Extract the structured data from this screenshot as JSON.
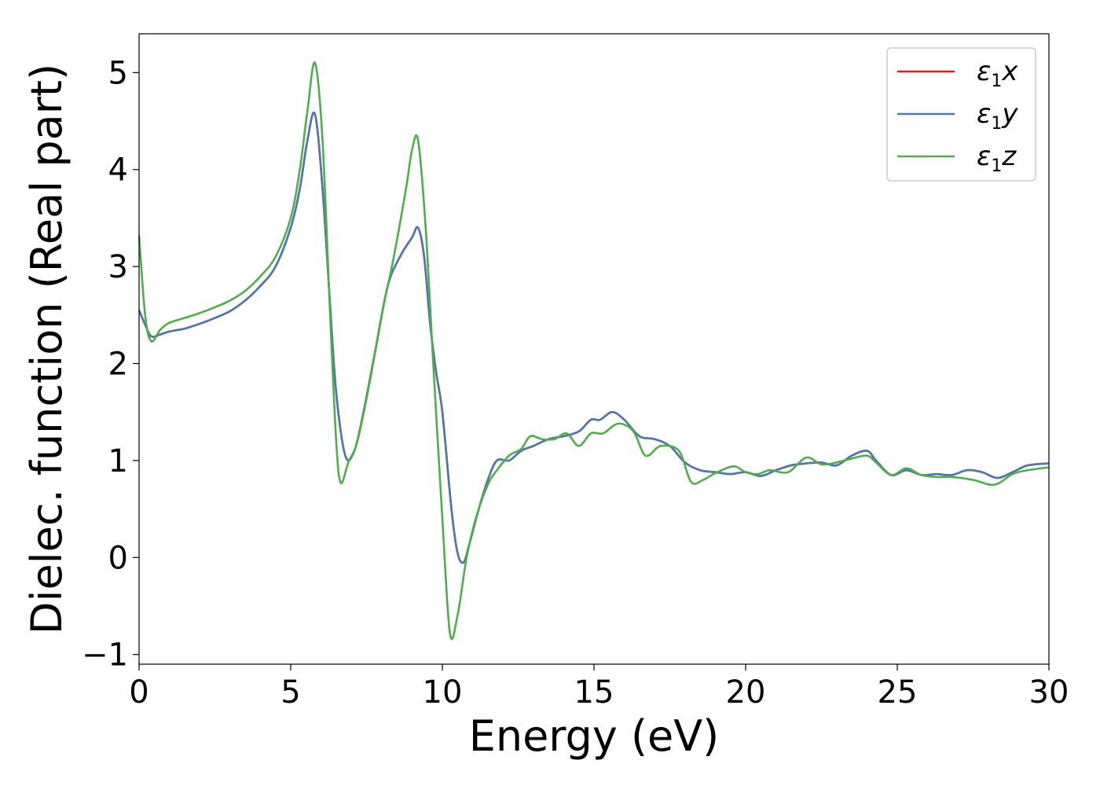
{
  "chart_data": {
    "type": "line",
    "xlabel": "Energy (eV)",
    "ylabel": "Dielec. function (Real part)",
    "xlim": [
      0,
      30
    ],
    "ylim": [
      -1.1,
      5.4
    ],
    "xticks": [
      0,
      5,
      10,
      15,
      20,
      25,
      30
    ],
    "xtick_labels": [
      "0",
      "5",
      "10",
      "15",
      "20",
      "25",
      "30"
    ],
    "yticks": [
      -1,
      0,
      1,
      2,
      3,
      4,
      5
    ],
    "ytick_labels": [
      "−1",
      "0",
      "1",
      "2",
      "3",
      "4",
      "5"
    ],
    "grid": false,
    "legend_position": "top-right",
    "series": [
      {
        "name": "ε1x",
        "legend_base": "ε",
        "legend_sub": "1",
        "legend_suffix": "x",
        "color": "#e41a1c",
        "x": [
          0,
          0.2,
          0.4,
          0.7,
          1,
          1.5,
          2,
          2.5,
          3,
          3.5,
          4,
          4.5,
          5,
          5.3,
          5.55,
          5.8,
          6.05,
          6.3,
          6.5,
          6.8,
          7.1,
          7.4,
          7.8,
          8.2,
          8.6,
          9.0,
          9.2,
          9.4,
          9.6,
          9.8,
          10.0,
          10.3,
          10.5,
          10.7,
          10.9,
          11.2,
          11.5,
          11.8,
          12.2,
          12.6,
          13.0,
          13.5,
          14.0,
          14.5,
          14.9,
          15.2,
          15.6,
          16.0,
          16.5,
          17.0,
          17.5,
          18.0,
          18.5,
          19.0,
          19.5,
          20.0,
          20.5,
          21.0,
          21.5,
          22.0,
          22.5,
          23.0,
          23.5,
          24.0,
          24.3,
          24.8,
          25.3,
          25.8,
          26.3,
          26.8,
          27.3,
          27.8,
          28.3,
          28.8,
          29.3,
          30.0
        ],
        "values": [
          2.55,
          2.4,
          2.28,
          2.3,
          2.33,
          2.36,
          2.41,
          2.47,
          2.54,
          2.65,
          2.8,
          3.0,
          3.4,
          3.8,
          4.3,
          4.57,
          3.8,
          2.6,
          1.7,
          1.05,
          1.1,
          1.5,
          2.15,
          2.8,
          3.1,
          3.3,
          3.4,
          3.1,
          2.4,
          1.9,
          1.5,
          0.5,
          0.05,
          -0.05,
          0.15,
          0.5,
          0.8,
          1.0,
          1.0,
          1.1,
          1.15,
          1.22,
          1.25,
          1.3,
          1.42,
          1.42,
          1.5,
          1.42,
          1.25,
          1.22,
          1.15,
          0.98,
          0.9,
          0.88,
          0.86,
          0.88,
          0.84,
          0.9,
          0.95,
          0.97,
          0.98,
          0.95,
          1.05,
          1.1,
          1.0,
          0.85,
          0.9,
          0.85,
          0.86,
          0.85,
          0.9,
          0.88,
          0.82,
          0.88,
          0.95,
          0.97
        ]
      },
      {
        "name": "ε1y",
        "legend_base": "ε",
        "legend_sub": "1",
        "legend_suffix": "y",
        "color": "#4a7ab0",
        "x": [
          0,
          0.2,
          0.4,
          0.7,
          1,
          1.5,
          2,
          2.5,
          3,
          3.5,
          4,
          4.5,
          5,
          5.3,
          5.55,
          5.8,
          6.05,
          6.3,
          6.5,
          6.8,
          7.1,
          7.4,
          7.8,
          8.2,
          8.6,
          9.0,
          9.2,
          9.4,
          9.6,
          9.8,
          10.0,
          10.3,
          10.5,
          10.7,
          10.9,
          11.2,
          11.5,
          11.8,
          12.2,
          12.6,
          13.0,
          13.5,
          14.0,
          14.5,
          14.9,
          15.2,
          15.6,
          16.0,
          16.5,
          17.0,
          17.5,
          18.0,
          18.5,
          19.0,
          19.5,
          20.0,
          20.5,
          21.0,
          21.5,
          22.0,
          22.5,
          23.0,
          23.5,
          24.0,
          24.3,
          24.8,
          25.3,
          25.8,
          26.3,
          26.8,
          27.3,
          27.8,
          28.3,
          28.8,
          29.3,
          30.0
        ],
        "values": [
          2.55,
          2.4,
          2.28,
          2.3,
          2.33,
          2.36,
          2.41,
          2.47,
          2.54,
          2.65,
          2.8,
          3.0,
          3.4,
          3.8,
          4.3,
          4.57,
          3.8,
          2.6,
          1.7,
          1.05,
          1.1,
          1.5,
          2.15,
          2.8,
          3.1,
          3.3,
          3.4,
          3.1,
          2.4,
          1.9,
          1.5,
          0.5,
          0.05,
          -0.05,
          0.15,
          0.5,
          0.8,
          1.0,
          1.0,
          1.1,
          1.15,
          1.22,
          1.25,
          1.3,
          1.42,
          1.42,
          1.5,
          1.42,
          1.25,
          1.22,
          1.15,
          0.98,
          0.9,
          0.88,
          0.86,
          0.88,
          0.84,
          0.9,
          0.95,
          0.97,
          0.98,
          0.95,
          1.05,
          1.1,
          1.0,
          0.85,
          0.9,
          0.85,
          0.86,
          0.85,
          0.9,
          0.88,
          0.82,
          0.88,
          0.95,
          0.97
        ]
      },
      {
        "name": "ε1z",
        "legend_base": "ε",
        "legend_sub": "1",
        "legend_suffix": "z",
        "color": "#4daf4a",
        "x": [
          0,
          0.2,
          0.4,
          0.7,
          1,
          1.5,
          2,
          2.5,
          3,
          3.5,
          4,
          4.5,
          5,
          5.3,
          5.55,
          5.8,
          6.05,
          6.3,
          6.5,
          6.65,
          6.9,
          7.2,
          7.6,
          8.0,
          8.4,
          8.8,
          9.0,
          9.2,
          9.45,
          9.7,
          10.0,
          10.25,
          10.5,
          10.8,
          11.1,
          11.5,
          11.8,
          12.2,
          12.6,
          12.9,
          13.3,
          13.7,
          14.1,
          14.5,
          14.9,
          15.3,
          15.8,
          16.3,
          16.7,
          17.2,
          17.8,
          18.2,
          18.6,
          19.0,
          19.6,
          20.0,
          20.4,
          20.8,
          21.4,
          22.0,
          22.5,
          23.0,
          23.5,
          24.0,
          24.3,
          24.8,
          25.3,
          25.8,
          26.3,
          26.8,
          27.5,
          28.2,
          28.8,
          29.3,
          30.0
        ],
        "values": [
          3.32,
          2.5,
          2.23,
          2.35,
          2.42,
          2.47,
          2.52,
          2.58,
          2.65,
          2.75,
          2.9,
          3.1,
          3.5,
          4.0,
          4.6,
          5.1,
          4.3,
          2.5,
          1.2,
          0.77,
          0.98,
          1.2,
          1.8,
          2.5,
          3.1,
          3.8,
          4.2,
          4.3,
          3.4,
          2.0,
          0.4,
          -0.78,
          -0.6,
          0.0,
          0.4,
          0.75,
          0.9,
          1.05,
          1.12,
          1.25,
          1.22,
          1.22,
          1.28,
          1.15,
          1.28,
          1.28,
          1.38,
          1.3,
          1.05,
          1.15,
          1.1,
          0.78,
          0.8,
          0.87,
          0.94,
          0.88,
          0.86,
          0.9,
          0.88,
          1.03,
          0.96,
          0.98,
          1.02,
          1.05,
          0.98,
          0.85,
          0.92,
          0.85,
          0.83,
          0.83,
          0.8,
          0.75,
          0.86,
          0.9,
          0.93
        ]
      }
    ]
  }
}
